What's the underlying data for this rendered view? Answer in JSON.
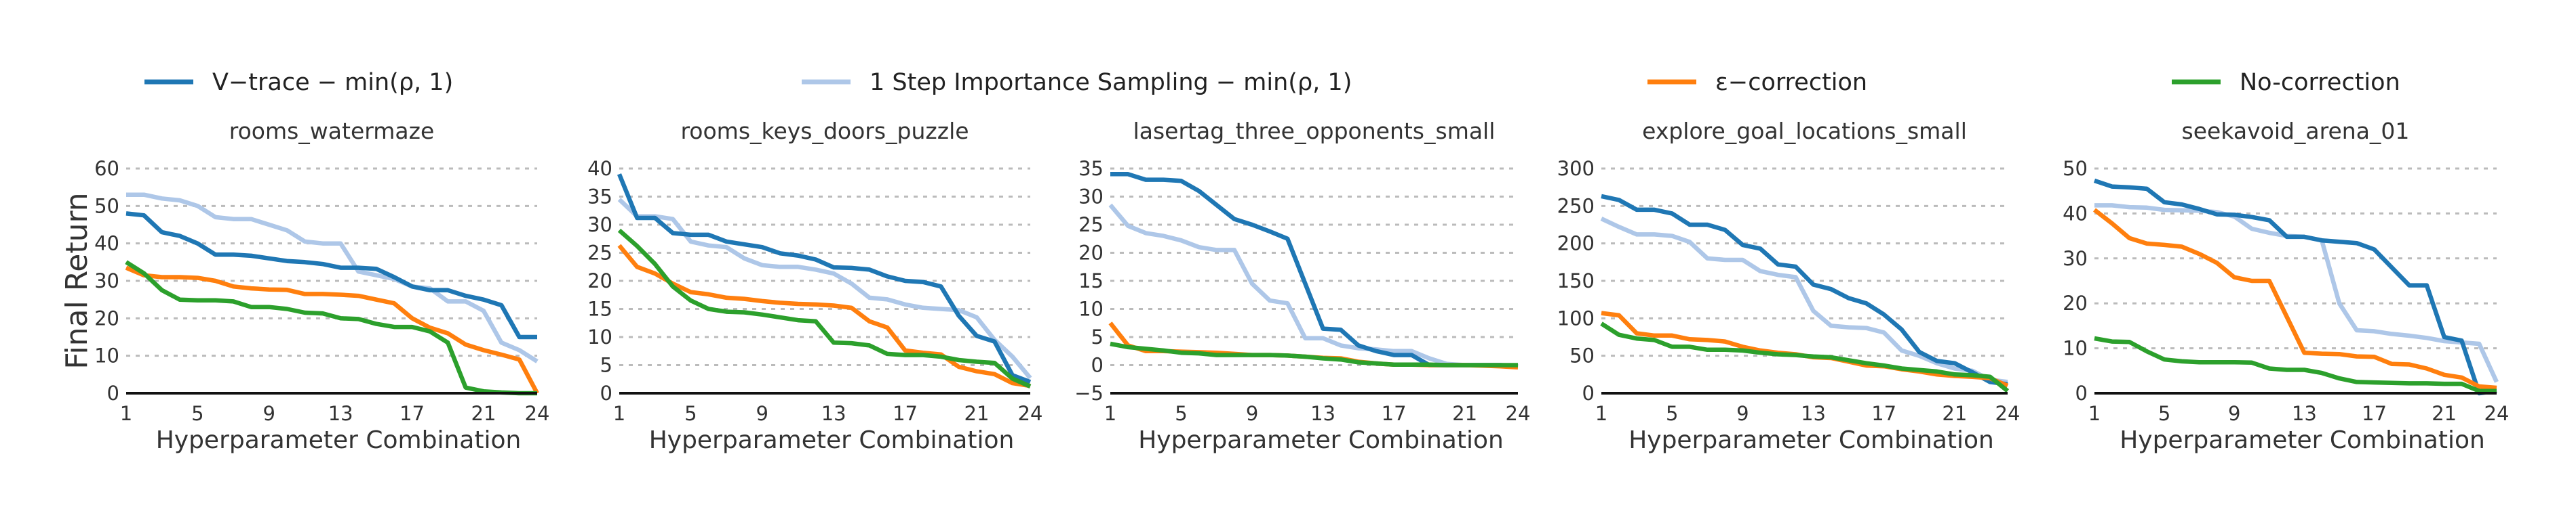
{
  "chart_data": {
    "type": "line",
    "legend": {
      "placement": "top",
      "entries": [
        {
          "name": "V−trace − min(ρ, 1)",
          "color": "#1f77b4"
        },
        {
          "name": "1 Step Importance Sampling − min(ρ, 1)",
          "color": "#aec7e8"
        },
        {
          "name": "ε−correction",
          "color": "#ff7f0e"
        },
        {
          "name": "No-correction",
          "color": "#2ca02c"
        }
      ]
    },
    "ylabel": "Final Return",
    "xlabel": "Hyperparameter Combination",
    "x": [
      1,
      2,
      3,
      4,
      5,
      6,
      7,
      8,
      9,
      10,
      11,
      12,
      13,
      14,
      15,
      16,
      17,
      18,
      19,
      20,
      21,
      22,
      23,
      24
    ],
    "xticks": [
      1,
      5,
      9,
      13,
      17,
      21,
      24
    ],
    "grid": "horizontal dotted",
    "panels": [
      {
        "title": "rooms_watermaze",
        "ylim": [
          0,
          60
        ],
        "yticks": [
          0,
          10,
          20,
          30,
          40,
          50,
          60
        ],
        "series": [
          [
            48,
            47.5,
            43,
            42,
            40,
            37,
            37,
            36.7,
            36,
            35.3,
            35,
            34.5,
            33.5,
            33.5,
            33.2,
            31,
            28.5,
            27.5,
            27.5,
            26,
            25,
            23.5,
            15,
            15
          ],
          [
            53,
            53,
            52,
            51.5,
            50,
            47,
            46.5,
            46.5,
            45,
            43.5,
            40.5,
            40,
            40,
            32.5,
            31.5,
            30.5,
            28.5,
            28,
            24.5,
            24.5,
            22,
            13.5,
            11.5,
            8.5
          ],
          [
            33.5,
            31.5,
            31,
            31,
            30.8,
            30,
            28.5,
            28,
            27.7,
            27.6,
            26.5,
            26.5,
            26.3,
            26,
            25,
            24,
            20,
            17.5,
            16,
            13,
            11.5,
            10.3,
            9,
            0
          ],
          [
            35,
            32,
            27.5,
            25,
            24.8,
            24.8,
            24.5,
            23,
            23,
            22.5,
            21.5,
            21.3,
            20,
            19.8,
            18.5,
            17.7,
            17.7,
            16.5,
            13.5,
            1.5,
            0.5,
            0.2,
            0,
            0
          ]
        ]
      },
      {
        "title": "rooms_keys_doors_puzzle",
        "ylim": [
          0,
          40
        ],
        "yticks": [
          0,
          5,
          10,
          15,
          20,
          25,
          30,
          35,
          40
        ],
        "series": [
          [
            39,
            31.2,
            31.2,
            28.5,
            28.2,
            28.2,
            27,
            26.5,
            26,
            24.9,
            24.5,
            23.8,
            22.4,
            22.3,
            22,
            20.8,
            20,
            19.8,
            19,
            13.8,
            10.2,
            9.2,
            3.2,
            2
          ],
          [
            34.5,
            31.5,
            31.5,
            31,
            27,
            26.3,
            26,
            24,
            22.8,
            22.5,
            22.5,
            22,
            21.3,
            19.5,
            17,
            16.7,
            15.8,
            15.2,
            15,
            14.8,
            13.5,
            9.5,
            6.5,
            2.7
          ],
          [
            26.3,
            22.5,
            21.3,
            19.5,
            18,
            17.6,
            17,
            16.8,
            16.4,
            16.1,
            15.9,
            15.8,
            15.6,
            15.2,
            12.8,
            11.7,
            7.6,
            7.2,
            6.9,
            4.7,
            3.9,
            3.4,
            1.8,
            1.3
          ],
          [
            29,
            26.2,
            23,
            19,
            16.5,
            15,
            14.5,
            14.4,
            14,
            13.5,
            13,
            12.8,
            9,
            8.9,
            8.5,
            7,
            6.8,
            6.8,
            6.5,
            5.9,
            5.6,
            5.4,
            2.6,
            1.2
          ]
        ]
      },
      {
        "title": "lasertag_three_opponents_small",
        "ylim": [
          -5,
          35
        ],
        "yticks": [
          -5,
          0,
          5,
          10,
          15,
          20,
          25,
          30,
          35
        ],
        "series": [
          [
            34,
            34,
            33,
            33,
            32.8,
            31,
            28.5,
            26,
            25,
            23.8,
            22.5,
            14.5,
            6.5,
            6.3,
            3.5,
            2.5,
            1.8,
            1.8,
            0,
            0,
            0,
            0,
            0,
            -0.2
          ],
          [
            28.5,
            24.8,
            23.5,
            23,
            22.2,
            21,
            20.5,
            20.5,
            14.5,
            11.5,
            11,
            4.8,
            4.8,
            3.5,
            3,
            2.8,
            2.5,
            2.5,
            1.2,
            0.2,
            0,
            0,
            0,
            -0.1
          ],
          [
            7.5,
            3.5,
            2.5,
            2.5,
            2.4,
            2.3,
            2.2,
            2,
            1.8,
            1.8,
            1.7,
            1.5,
            1.3,
            1.2,
            0.6,
            0.3,
            0.1,
            0.1,
            0,
            0,
            0,
            -0.1,
            -0.2,
            -0.4
          ],
          [
            3.8,
            3.2,
            2.9,
            2.6,
            2.2,
            2.1,
            1.8,
            1.8,
            1.8,
            1.8,
            1.7,
            1.5,
            1.2,
            1,
            0.5,
            0.3,
            0.1,
            0.1,
            0.1,
            0,
            0,
            0,
            0,
            0
          ]
        ]
      },
      {
        "title": "explore_goal_locations_small",
        "ylim": [
          0,
          300
        ],
        "yticks": [
          0,
          50,
          100,
          150,
          200,
          250,
          300
        ],
        "series": [
          [
            263,
            258,
            245,
            245,
            240,
            225,
            225,
            218,
            198,
            193,
            172,
            169,
            145,
            139,
            127,
            120,
            105,
            85,
            55,
            43,
            40,
            28,
            15,
            12
          ],
          [
            233,
            222,
            212,
            212,
            210,
            202,
            180,
            178,
            178,
            163,
            158,
            155,
            110,
            90,
            88,
            87,
            81,
            57,
            50,
            40,
            33,
            30,
            18,
            15
          ],
          [
            107,
            104,
            80,
            77,
            77,
            72,
            71,
            69,
            62,
            57,
            54,
            52,
            48,
            47,
            42,
            37,
            36,
            32,
            29,
            25,
            23,
            22,
            20,
            10
          ],
          [
            93,
            78,
            73,
            71,
            62,
            62,
            58,
            58,
            57,
            54,
            52,
            51,
            49,
            48,
            44,
            40,
            37,
            33,
            31,
            29,
            25,
            24,
            22,
            3
          ]
        ]
      },
      {
        "title": "seekavoid_arena_01",
        "ylim": [
          0,
          50
        ],
        "yticks": [
          0,
          10,
          20,
          30,
          40,
          50
        ],
        "series": [
          [
            47.3,
            46,
            45.8,
            45.5,
            42.5,
            42,
            41,
            39.8,
            39.7,
            39.2,
            38.5,
            34.8,
            34.8,
            34,
            33.7,
            33.4,
            32,
            28,
            24,
            24,
            12.5,
            11.7,
            0,
            0.5
          ],
          [
            41.8,
            41.8,
            41.4,
            41.3,
            40.8,
            40.7,
            40.6,
            40.3,
            39.3,
            36.6,
            35.7,
            35,
            34.8,
            34,
            20,
            14,
            13.8,
            13.2,
            12.8,
            12.3,
            11.6,
            11.3,
            11,
            2.5
          ],
          [
            40.8,
            37.8,
            34.5,
            33.3,
            33,
            32.6,
            31,
            29,
            25.8,
            25,
            25,
            17,
            9,
            8.8,
            8.7,
            8.2,
            8.1,
            6.5,
            6.4,
            5.5,
            4.1,
            3.5,
            1.5,
            1.2
          ],
          [
            12.2,
            11.5,
            11.4,
            9.3,
            7.5,
            7.1,
            6.9,
            6.9,
            6.9,
            6.8,
            5.5,
            5.2,
            5.2,
            4.5,
            3.3,
            2.5,
            2.4,
            2.3,
            2.2,
            2.2,
            2.1,
            2.1,
            0.5,
            0.5
          ]
        ]
      }
    ]
  }
}
